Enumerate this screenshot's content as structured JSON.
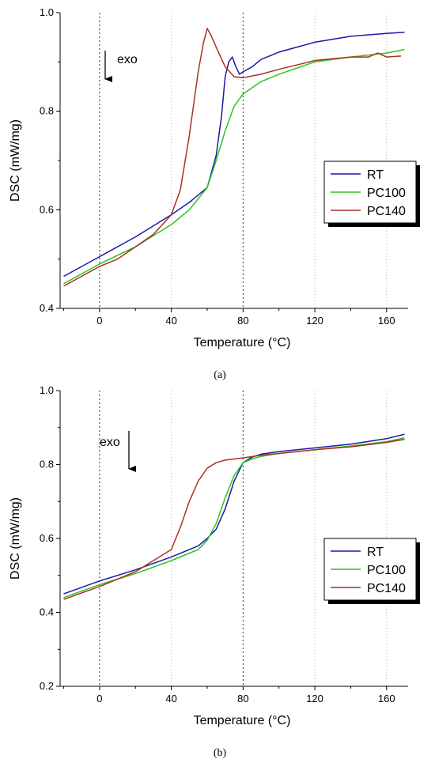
{
  "chart_data": [
    {
      "type": "line",
      "panel": "a",
      "caption": "(a)",
      "xlabel": "Temperature (°C)",
      "ylabel": "DSC (mW/mg)",
      "xlim": [
        -22,
        172
      ],
      "ylim": [
        0.4,
        1.0
      ],
      "xticks": [
        0,
        40,
        80,
        120,
        160
      ],
      "yticks": [
        0.4,
        0.6,
        0.8,
        1.0
      ],
      "tick_labels_x": [
        "0",
        "40",
        "80",
        "120",
        "160"
      ],
      "tick_labels_y": [
        "0.4",
        "0.6",
        "0.8",
        "1.0"
      ],
      "annotation": "exo",
      "legend_position": "right",
      "series": [
        {
          "name": "RT",
          "color": "#1a1aa8",
          "x": [
            -20,
            0,
            20,
            40,
            50,
            60,
            65,
            68,
            70,
            72,
            74,
            76,
            78,
            80,
            85,
            90,
            100,
            120,
            140,
            160,
            170
          ],
          "y": [
            0.465,
            0.505,
            0.545,
            0.59,
            0.615,
            0.645,
            0.71,
            0.79,
            0.87,
            0.9,
            0.91,
            0.89,
            0.875,
            0.88,
            0.89,
            0.905,
            0.92,
            0.94,
            0.952,
            0.958,
            0.96
          ]
        },
        {
          "name": "PC100",
          "color": "#2ec41e",
          "x": [
            -20,
            0,
            20,
            40,
            50,
            60,
            65,
            70,
            75,
            80,
            90,
            100,
            120,
            140,
            160,
            170
          ],
          "y": [
            0.45,
            0.49,
            0.525,
            0.57,
            0.6,
            0.645,
            0.7,
            0.76,
            0.81,
            0.835,
            0.86,
            0.875,
            0.9,
            0.91,
            0.918,
            0.925
          ]
        },
        {
          "name": "PC140",
          "color": "#a83222",
          "x": [
            -20,
            0,
            10,
            20,
            30,
            40,
            45,
            50,
            55,
            58,
            60,
            62,
            65,
            70,
            75,
            80,
            90,
            100,
            120,
            140,
            150,
            155,
            160,
            168
          ],
          "y": [
            0.445,
            0.485,
            0.5,
            0.525,
            0.55,
            0.59,
            0.64,
            0.75,
            0.88,
            0.94,
            0.968,
            0.955,
            0.93,
            0.89,
            0.87,
            0.868,
            0.875,
            0.885,
            0.903,
            0.91,
            0.91,
            0.918,
            0.91,
            0.912
          ]
        }
      ]
    },
    {
      "type": "line",
      "panel": "b",
      "caption": "(b)",
      "xlabel": "Temperature (°C)",
      "ylabel": "DSC (mW/mg)",
      "xlim": [
        -22,
        172
      ],
      "ylim": [
        0.2,
        1.0
      ],
      "xticks": [
        0,
        40,
        80,
        120,
        160
      ],
      "yticks": [
        0.2,
        0.4,
        0.6,
        0.8,
        1.0
      ],
      "tick_labels_x": [
        "0",
        "40",
        "80",
        "120",
        "160"
      ],
      "tick_labels_y": [
        "0.2",
        "0.4",
        "0.6",
        "0.8",
        "1.0"
      ],
      "annotation": "exo",
      "legend_position": "right",
      "series": [
        {
          "name": "RT",
          "color": "#1a1aa8",
          "x": [
            -20,
            0,
            20,
            40,
            55,
            60,
            65,
            70,
            75,
            80,
            85,
            90,
            100,
            120,
            140,
            160,
            170
          ],
          "y": [
            0.45,
            0.485,
            0.515,
            0.55,
            0.58,
            0.6,
            0.625,
            0.68,
            0.755,
            0.805,
            0.82,
            0.828,
            0.835,
            0.845,
            0.855,
            0.87,
            0.882
          ]
        },
        {
          "name": "PC100",
          "color": "#2ec41e",
          "x": [
            -20,
            0,
            20,
            40,
            55,
            60,
            65,
            70,
            75,
            80,
            85,
            90,
            100,
            120,
            140,
            160,
            170
          ],
          "y": [
            0.44,
            0.475,
            0.505,
            0.54,
            0.57,
            0.595,
            0.64,
            0.71,
            0.77,
            0.805,
            0.815,
            0.822,
            0.83,
            0.84,
            0.85,
            0.862,
            0.872
          ]
        },
        {
          "name": "PC140",
          "color": "#a83222",
          "x": [
            -20,
            0,
            20,
            40,
            45,
            50,
            55,
            60,
            65,
            70,
            80,
            90,
            100,
            120,
            140,
            160,
            170
          ],
          "y": [
            0.435,
            0.47,
            0.51,
            0.57,
            0.63,
            0.7,
            0.755,
            0.79,
            0.805,
            0.812,
            0.818,
            0.825,
            0.83,
            0.84,
            0.848,
            0.86,
            0.868
          ]
        }
      ]
    }
  ]
}
